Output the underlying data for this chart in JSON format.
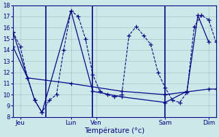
{
  "xlabel": "Température (°c)",
  "bg_color": "#cce8e8",
  "grid_color": "#aacccc",
  "line_color": "#00008b",
  "ylim": [
    8,
    18
  ],
  "yticks": [
    8,
    9,
    10,
    11,
    12,
    13,
    14,
    15,
    16,
    17,
    18
  ],
  "xlim": [
    0,
    28
  ],
  "x_tick_positions": [
    1,
    8,
    11.5,
    21,
    27
  ],
  "x_tick_labels": [
    "Jeu",
    "Lun",
    "Ven",
    "Sam",
    "Dim"
  ],
  "vline_positions": [
    4.5,
    11.0,
    21.0
  ],
  "line1_x": [
    0.0,
    1.0,
    2.0,
    3.0,
    4.0,
    5.0,
    6.0,
    7.0,
    8.0,
    9.0,
    10.0,
    11.0,
    12.0,
    13.0,
    14.0,
    15.0,
    16.0,
    17.0,
    18.0,
    19.0,
    20.0,
    21.0,
    22.0,
    23.0,
    24.0,
    25.0,
    26.0,
    27.0,
    28.0
  ],
  "line1_y": [
    15.6,
    14.3,
    11.5,
    9.5,
    8.4,
    9.5,
    10.0,
    14.0,
    17.5,
    17.0,
    15.0,
    11.8,
    10.3,
    10.0,
    9.8,
    10.0,
    15.3,
    16.1,
    15.3,
    14.5,
    12.0,
    10.6,
    9.5,
    9.3,
    10.2,
    16.1,
    17.1,
    16.7,
    14.7
  ],
  "line2_x": [
    0.0,
    3.0,
    4.0,
    8.0,
    11.0,
    15.0,
    21.0,
    24.0,
    25.5,
    27.0
  ],
  "line2_y": [
    15.6,
    9.5,
    8.4,
    17.5,
    10.3,
    9.8,
    9.3,
    10.3,
    17.1,
    14.7
  ],
  "line3_x": [
    0.0,
    2.0,
    8.0,
    15.0,
    21.0,
    27.0,
    28.0
  ],
  "line3_y": [
    14.3,
    11.5,
    11.0,
    10.3,
    10.0,
    10.5,
    10.5
  ],
  "figsize": [
    3.2,
    2.0
  ],
  "dpi": 100
}
